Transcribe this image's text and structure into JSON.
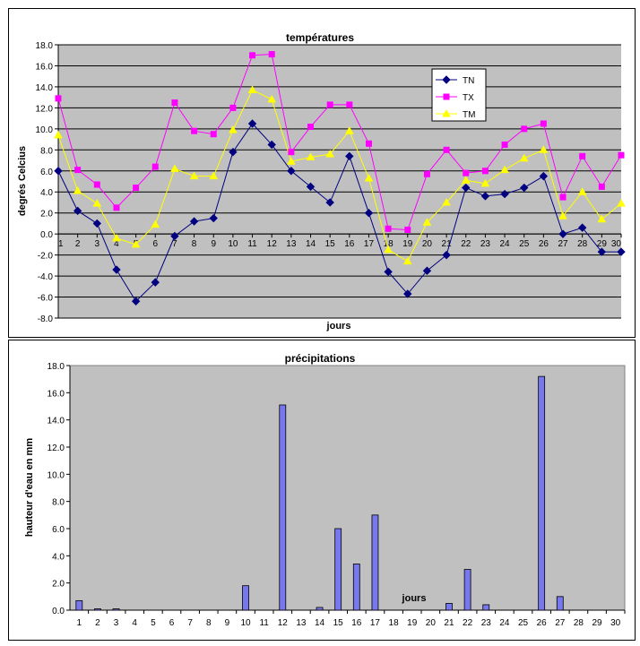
{
  "chart_data": [
    {
      "type": "line",
      "title": "températures",
      "xlabel": "jours",
      "ylabel": "degrés Celcius",
      "categories": [
        "1",
        "2",
        "3",
        "4",
        "5",
        "6",
        "7",
        "8",
        "9",
        "10",
        "11",
        "12",
        "13",
        "14",
        "15",
        "16",
        "17",
        "18",
        "19",
        "20",
        "21",
        "22",
        "23",
        "24",
        "25",
        "26",
        "27",
        "28",
        "29",
        "30"
      ],
      "ylim": [
        -8,
        18
      ],
      "ytick_labels": [
        "-8.0",
        "-6.0",
        "-4.0",
        "-2.0",
        "0.0",
        "2.0",
        "4.0",
        "6.0",
        "8.0",
        "10.0",
        "12.0",
        "14.0",
        "16.0",
        "18.0"
      ],
      "grid": true,
      "legend_position": "top-right",
      "series": [
        {
          "name": "TN",
          "color": "#000080",
          "marker": "diamond",
          "values": [
            6.0,
            2.2,
            1.0,
            -3.4,
            -6.4,
            -4.6,
            -0.2,
            1.2,
            1.5,
            7.8,
            10.5,
            8.5,
            6.0,
            4.5,
            3.0,
            7.4,
            2.0,
            -3.6,
            -5.7,
            -3.5,
            -2.0,
            4.4,
            3.6,
            3.8,
            4.4,
            5.5,
            0.0,
            0.6,
            -1.7,
            -1.7
          ]
        },
        {
          "name": "TX",
          "color": "#FF00FF",
          "marker": "square",
          "values": [
            12.9,
            6.1,
            4.7,
            2.5,
            4.4,
            6.4,
            12.5,
            9.8,
            9.5,
            12.0,
            17.0,
            17.1,
            7.8,
            10.2,
            12.3,
            12.3,
            8.6,
            0.5,
            0.4,
            5.7,
            8.0,
            5.8,
            6.0,
            8.5,
            10.0,
            10.5,
            3.5,
            7.4,
            4.5,
            7.5
          ]
        },
        {
          "name": "TM",
          "color": "#FFFF00",
          "marker": "triangle",
          "values": [
            9.4,
            4.1,
            2.9,
            -0.4,
            -1.0,
            0.9,
            6.2,
            5.5,
            5.5,
            9.9,
            13.7,
            12.8,
            6.9,
            7.3,
            7.6,
            9.8,
            5.3,
            -1.5,
            -2.6,
            1.1,
            3.0,
            5.1,
            4.8,
            6.1,
            7.2,
            8.0,
            1.7,
            4.0,
            1.4,
            2.9
          ]
        }
      ]
    },
    {
      "type": "bar",
      "title": "précipitations",
      "xlabel": "jours",
      "ylabel": "hauteur d'eau en mm",
      "categories": [
        "1",
        "2",
        "3",
        "4",
        "5",
        "6",
        "7",
        "8",
        "9",
        "10",
        "11",
        "12",
        "13",
        "14",
        "15",
        "16",
        "17",
        "18",
        "19",
        "20",
        "21",
        "22",
        "23",
        "24",
        "25",
        "26",
        "27",
        "28",
        "29",
        "30"
      ],
      "values": [
        0.7,
        0.1,
        0.1,
        0,
        0,
        0,
        0,
        0,
        0,
        1.8,
        0,
        15.1,
        0,
        0.2,
        6.0,
        3.4,
        7.0,
        0,
        0,
        0,
        0.5,
        3.0,
        0.4,
        0,
        0,
        17.2,
        1.0,
        0,
        0,
        0
      ],
      "ylim": [
        0,
        18
      ],
      "ytick_labels": [
        "0.0",
        "2.0",
        "4.0",
        "6.0",
        "8.0",
        "10.0",
        "12.0",
        "14.0",
        "16.0",
        "18.0"
      ],
      "grid": false,
      "bar_color": "#7777EE"
    }
  ]
}
